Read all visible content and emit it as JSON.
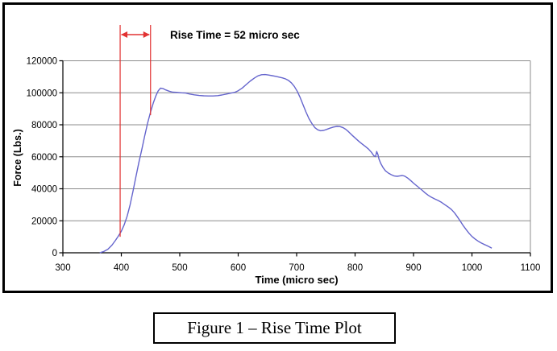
{
  "figure": {
    "caption": "Figure 1 – Rise Time Plot"
  },
  "chart_data": {
    "type": "line",
    "title": "",
    "xlabel": "Time (micro sec)",
    "ylabel": "Force (Lbs.)",
    "xlim": [
      300,
      1100
    ],
    "ylim": [
      0,
      120000
    ],
    "xticks": [
      300,
      400,
      500,
      600,
      700,
      800,
      900,
      1000,
      1100
    ],
    "yticks": [
      0,
      20000,
      40000,
      60000,
      80000,
      100000,
      120000
    ],
    "grid": "horizontal",
    "legend": "none",
    "colors": {
      "curve": "#6565cd",
      "annotation": "#e23232",
      "gridline": "#8c8c8c",
      "axis": "#000000"
    },
    "annotation": {
      "label": "Rise Time = 52 micro sec",
      "rise_time_micro_sec": 52,
      "marker_lines": [
        {
          "t": 398,
          "force_bottom": 10000
        },
        {
          "t": 450,
          "force_bottom": 86000
        }
      ]
    },
    "series": [
      {
        "name": "Force",
        "points": [
          [
            363,
            0
          ],
          [
            370,
            800
          ],
          [
            377,
            2200
          ],
          [
            384,
            4800
          ],
          [
            390,
            7800
          ],
          [
            395,
            10500
          ],
          [
            400,
            13500
          ],
          [
            405,
            17500
          ],
          [
            410,
            23000
          ],
          [
            415,
            30000
          ],
          [
            420,
            38500
          ],
          [
            425,
            47500
          ],
          [
            430,
            56500
          ],
          [
            435,
            64500
          ],
          [
            440,
            73000
          ],
          [
            445,
            81000
          ],
          [
            450,
            88000
          ],
          [
            455,
            94000
          ],
          [
            459,
            98000
          ],
          [
            463,
            101200
          ],
          [
            467,
            102900
          ],
          [
            471,
            102700
          ],
          [
            476,
            101800
          ],
          [
            482,
            101000
          ],
          [
            488,
            100400
          ],
          [
            495,
            100300
          ],
          [
            503,
            100000
          ],
          [
            510,
            99800
          ],
          [
            517,
            99200
          ],
          [
            525,
            98700
          ],
          [
            533,
            98300
          ],
          [
            541,
            98100
          ],
          [
            549,
            98000
          ],
          [
            557,
            98000
          ],
          [
            565,
            98200
          ],
          [
            572,
            98600
          ],
          [
            580,
            99200
          ],
          [
            588,
            99800
          ],
          [
            594,
            100300
          ],
          [
            600,
            101300
          ],
          [
            607,
            103000
          ],
          [
            614,
            105200
          ],
          [
            621,
            107400
          ],
          [
            628,
            109300
          ],
          [
            634,
            110600
          ],
          [
            640,
            111300
          ],
          [
            646,
            111400
          ],
          [
            652,
            111100
          ],
          [
            658,
            110700
          ],
          [
            664,
            110300
          ],
          [
            670,
            109800
          ],
          [
            676,
            109300
          ],
          [
            681,
            108700
          ],
          [
            686,
            107700
          ],
          [
            691,
            106200
          ],
          [
            696,
            104000
          ],
          [
            701,
            101000
          ],
          [
            706,
            97000
          ],
          [
            711,
            92500
          ],
          [
            716,
            88000
          ],
          [
            721,
            84000
          ],
          [
            726,
            80800
          ],
          [
            731,
            78300
          ],
          [
            736,
            76900
          ],
          [
            741,
            76300
          ],
          [
            746,
            76500
          ],
          [
            751,
            77100
          ],
          [
            757,
            77900
          ],
          [
            763,
            78600
          ],
          [
            769,
            79000
          ],
          [
            774,
            78900
          ],
          [
            779,
            78300
          ],
          [
            784,
            77200
          ],
          [
            789,
            75600
          ],
          [
            794,
            73800
          ],
          [
            800,
            71800
          ],
          [
            806,
            69800
          ],
          [
            812,
            68000
          ],
          [
            818,
            66300
          ],
          [
            823,
            64800
          ],
          [
            828,
            62800
          ],
          [
            832,
            60700
          ],
          [
            835,
            60100
          ],
          [
            837,
            63300
          ],
          [
            839,
            61500
          ],
          [
            841,
            58500
          ],
          [
            844,
            55800
          ],
          [
            848,
            53200
          ],
          [
            852,
            51200
          ],
          [
            857,
            49800
          ],
          [
            862,
            48800
          ],
          [
            867,
            48000
          ],
          [
            872,
            47800
          ],
          [
            877,
            48100
          ],
          [
            881,
            48300
          ],
          [
            885,
            47900
          ],
          [
            890,
            46700
          ],
          [
            895,
            45200
          ],
          [
            900,
            43500
          ],
          [
            905,
            42000
          ],
          [
            910,
            40500
          ],
          [
            915,
            39000
          ],
          [
            920,
            37400
          ],
          [
            925,
            36000
          ],
          [
            930,
            34800
          ],
          [
            936,
            33700
          ],
          [
            942,
            32700
          ],
          [
            948,
            31500
          ],
          [
            954,
            30000
          ],
          [
            960,
            28500
          ],
          [
            965,
            27000
          ],
          [
            970,
            25000
          ],
          [
            975,
            22500
          ],
          [
            980,
            19800
          ],
          [
            985,
            17000
          ],
          [
            990,
            14500
          ],
          [
            995,
            12200
          ],
          [
            1000,
            10200
          ],
          [
            1005,
            8700
          ],
          [
            1010,
            7400
          ],
          [
            1015,
            6300
          ],
          [
            1020,
            5400
          ],
          [
            1025,
            4600
          ],
          [
            1030,
            3600
          ],
          [
            1034,
            2900
          ]
        ]
      }
    ]
  }
}
